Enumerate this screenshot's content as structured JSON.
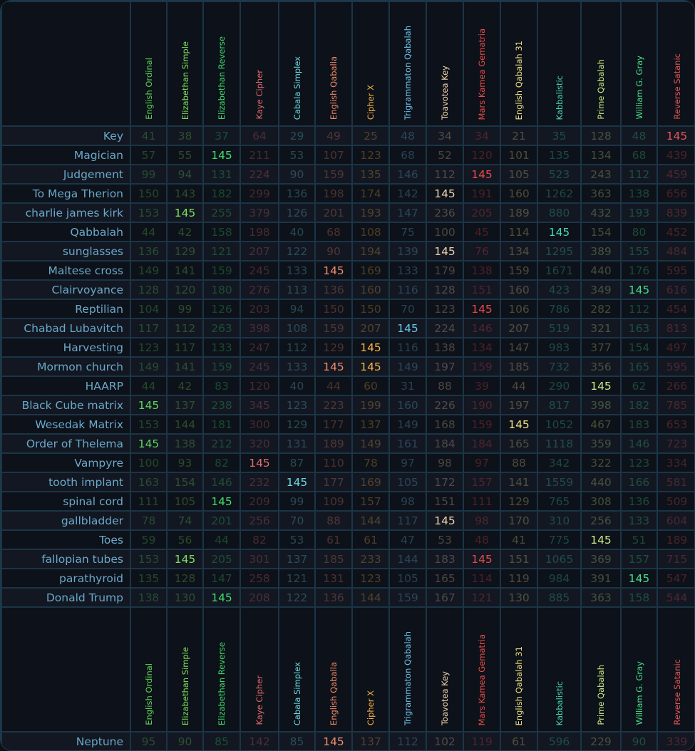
{
  "columns": [
    {
      "name": "English Ordinal",
      "color": "#5fd65a"
    },
    {
      "name": "Elizabethan Simple",
      "color": "#7be05a"
    },
    {
      "name": "Elizabethan Reverse",
      "color": "#3edc6c"
    },
    {
      "name": "Kaye Cipher",
      "color": "#e06a6a"
    },
    {
      "name": "Cabala Simplex",
      "color": "#6ad8de"
    },
    {
      "name": "English Qaballa",
      "color": "#f08a68"
    },
    {
      "name": "Cipher X",
      "color": "#f5b244"
    },
    {
      "name": "Trigrammaton Qabalah",
      "color": "#6cc2ea"
    },
    {
      "name": "Toavotea Key",
      "color": "#f0d2aa"
    },
    {
      "name": "Mars Kamea Gematria",
      "color": "#e84a4a"
    },
    {
      "name": "English Qabalah 31",
      "color": "#f0e184"
    },
    {
      "name": "Kabbalistic",
      "color": "#46d6b2"
    },
    {
      "name": "Prime Qabalah",
      "color": "#cbeb84"
    },
    {
      "name": "William G. Gray",
      "color": "#46de8a"
    },
    {
      "name": "Reverse Satanic",
      "color": "#e25656"
    }
  ],
  "highlight_value": "145",
  "rows": [
    {
      "label": "Key",
      "values": [
        "41",
        "38",
        "37",
        "64",
        "29",
        "49",
        "25",
        "48",
        "34",
        "34",
        "21",
        "35",
        "128",
        "48",
        "145"
      ]
    },
    {
      "label": "Magician",
      "values": [
        "57",
        "55",
        "145",
        "211",
        "53",
        "107",
        "123",
        "68",
        "52",
        "120",
        "101",
        "135",
        "134",
        "68",
        "439"
      ]
    },
    {
      "label": "Judgement",
      "values": [
        "99",
        "94",
        "131",
        "224",
        "90",
        "159",
        "135",
        "146",
        "112",
        "145",
        "105",
        "523",
        "243",
        "112",
        "459"
      ]
    },
    {
      "label": "To Mega Therion",
      "values": [
        "150",
        "143",
        "182",
        "299",
        "136",
        "198",
        "174",
        "142",
        "145",
        "191",
        "160",
        "1262",
        "363",
        "138",
        "656"
      ]
    },
    {
      "label": "charlie james kirk",
      "values": [
        "153",
        "145",
        "255",
        "379",
        "126",
        "201",
        "193",
        "147",
        "236",
        "205",
        "189",
        "880",
        "432",
        "193",
        "839"
      ]
    },
    {
      "label": "Qabbalah",
      "values": [
        "44",
        "42",
        "158",
        "198",
        "40",
        "68",
        "108",
        "75",
        "100",
        "45",
        "114",
        "145",
        "154",
        "80",
        "452"
      ]
    },
    {
      "label": "sunglasses",
      "values": [
        "136",
        "129",
        "121",
        "207",
        "122",
        "90",
        "194",
        "139",
        "145",
        "76",
        "134",
        "1295",
        "389",
        "155",
        "484"
      ]
    },
    {
      "label": "Maltese cross",
      "values": [
        "149",
        "141",
        "159",
        "245",
        "133",
        "145",
        "169",
        "133",
        "179",
        "138",
        "159",
        "1671",
        "440",
        "176",
        "595"
      ]
    },
    {
      "label": "Clairvoyance",
      "values": [
        "128",
        "120",
        "180",
        "276",
        "113",
        "136",
        "160",
        "116",
        "128",
        "151",
        "160",
        "423",
        "349",
        "145",
        "616"
      ]
    },
    {
      "label": "Reptilian",
      "values": [
        "104",
        "99",
        "126",
        "203",
        "94",
        "150",
        "150",
        "70",
        "123",
        "145",
        "106",
        "786",
        "282",
        "112",
        "454"
      ]
    },
    {
      "label": "Chabad Lubavitch",
      "values": [
        "117",
        "112",
        "263",
        "398",
        "108",
        "159",
        "207",
        "145",
        "224",
        "146",
        "207",
        "519",
        "321",
        "163",
        "813"
      ]
    },
    {
      "label": "Harvesting",
      "values": [
        "123",
        "117",
        "133",
        "247",
        "112",
        "129",
        "145",
        "116",
        "138",
        "134",
        "147",
        "983",
        "377",
        "154",
        "497"
      ]
    },
    {
      "label": "Mormon church",
      "values": [
        "149",
        "141",
        "159",
        "245",
        "133",
        "145",
        "145",
        "149",
        "197",
        "159",
        "185",
        "732",
        "356",
        "165",
        "595"
      ]
    },
    {
      "label": "HAARP",
      "values": [
        "44",
        "42",
        "83",
        "120",
        "40",
        "44",
        "60",
        "31",
        "88",
        "39",
        "44",
        "290",
        "145",
        "62",
        "266"
      ]
    },
    {
      "label": "Black Cube matrix",
      "values": [
        "145",
        "137",
        "238",
        "345",
        "123",
        "223",
        "199",
        "160",
        "226",
        "190",
        "197",
        "817",
        "398",
        "182",
        "785"
      ]
    },
    {
      "label": "Wesedak Matrix",
      "values": [
        "153",
        "144",
        "181",
        "300",
        "129",
        "177",
        "137",
        "149",
        "168",
        "159",
        "145",
        "1052",
        "467",
        "183",
        "653"
      ]
    },
    {
      "label": "Order of Thelema",
      "values": [
        "145",
        "138",
        "212",
        "320",
        "131",
        "189",
        "149",
        "161",
        "184",
        "184",
        "165",
        "1118",
        "359",
        "146",
        "723"
      ]
    },
    {
      "label": "Vampyre",
      "values": [
        "100",
        "93",
        "82",
        "145",
        "87",
        "110",
        "78",
        "97",
        "98",
        "97",
        "88",
        "342",
        "322",
        "123",
        "334"
      ]
    },
    {
      "label": "tooth implant",
      "values": [
        "163",
        "154",
        "146",
        "232",
        "145",
        "177",
        "169",
        "105",
        "172",
        "157",
        "141",
        "1559",
        "440",
        "166",
        "581"
      ]
    },
    {
      "label": "spinal cord",
      "values": [
        "111",
        "105",
        "145",
        "209",
        "99",
        "109",
        "157",
        "98",
        "151",
        "111",
        "129",
        "765",
        "308",
        "136",
        "509"
      ]
    },
    {
      "label": "gallbladder",
      "values": [
        "78",
        "74",
        "201",
        "256",
        "70",
        "88",
        "144",
        "117",
        "145",
        "98",
        "170",
        "310",
        "256",
        "133",
        "604"
      ]
    },
    {
      "label": "Toes",
      "values": [
        "59",
        "56",
        "44",
        "82",
        "53",
        "61",
        "61",
        "47",
        "53",
        "48",
        "41",
        "775",
        "145",
        "51",
        "189"
      ]
    },
    {
      "label": "fallopian tubes",
      "values": [
        "153",
        "145",
        "205",
        "301",
        "137",
        "185",
        "233",
        "144",
        "183",
        "145",
        "151",
        "1065",
        "369",
        "157",
        "715"
      ]
    },
    {
      "label": "parathyroid",
      "values": [
        "135",
        "128",
        "147",
        "258",
        "121",
        "131",
        "123",
        "105",
        "165",
        "114",
        "119",
        "984",
        "391",
        "145",
        "547"
      ]
    },
    {
      "label": "Donald Trump",
      "values": [
        "138",
        "130",
        "145",
        "208",
        "122",
        "136",
        "144",
        "159",
        "167",
        "121",
        "130",
        "885",
        "363",
        "158",
        "544"
      ]
    }
  ],
  "footer_rows": [
    {
      "label": "Neptune",
      "values": [
        "95",
        "90",
        "85",
        "142",
        "85",
        "145",
        "137",
        "112",
        "102",
        "119",
        "61",
        "596",
        "229",
        "90",
        "339"
      ]
    }
  ]
}
